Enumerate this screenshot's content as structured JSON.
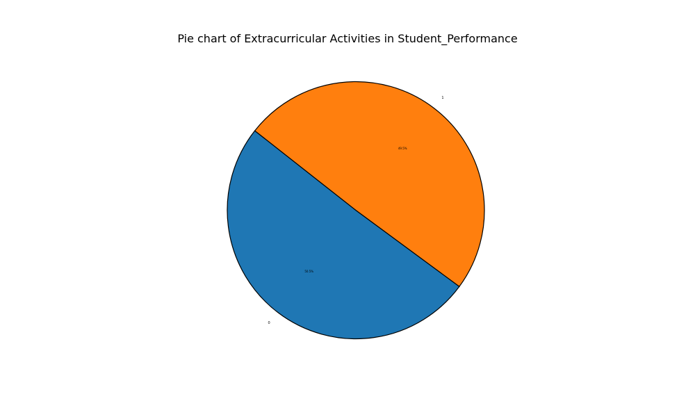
{
  "chart_data": {
    "type": "pie",
    "title": "Pie chart of Extracurricular Activities in Student_Performance",
    "slices": [
      {
        "label": "0",
        "value": 50.5,
        "pct_label": "50.5%",
        "color": "#1f77b4"
      },
      {
        "label": "1",
        "value": 49.5,
        "pct_label": "49.5%",
        "color": "#ff7f0e"
      }
    ],
    "edge_color": "#000000"
  }
}
